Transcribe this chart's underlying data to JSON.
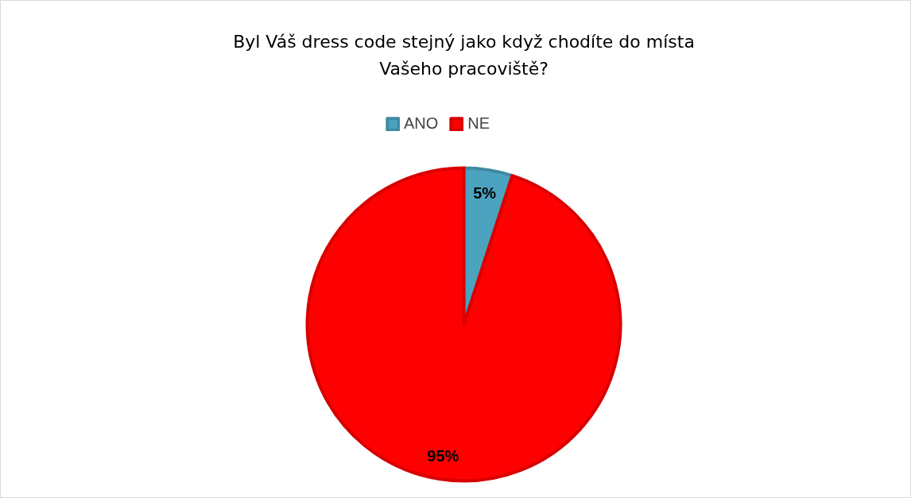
{
  "chart_data": {
    "type": "pie",
    "title": "Byl Váš dress code stejný jako když chodíte do místa\nVašeho pracoviště?",
    "categories": [
      "ANO",
      "NE"
    ],
    "values": [
      5,
      95
    ],
    "colors": [
      "#4ba3bf",
      "#ff0000"
    ],
    "value_labels": [
      "5%",
      "95%"
    ],
    "legend": "top"
  }
}
